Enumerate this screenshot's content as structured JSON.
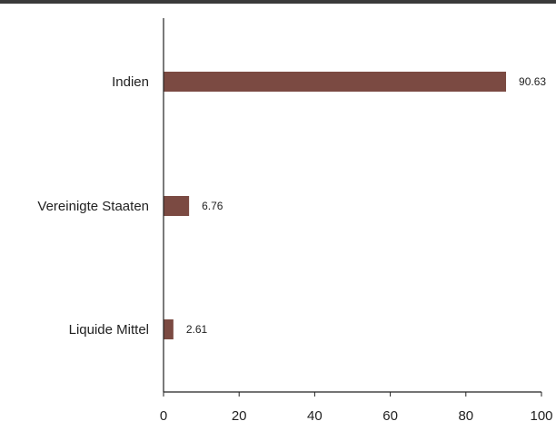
{
  "chart_data": {
    "type": "bar",
    "orientation": "horizontal",
    "categories": [
      "Indien",
      "Vereinigte Staaten",
      "Liquide Mittel"
    ],
    "values": [
      90.63,
      6.76,
      2.61
    ],
    "value_labels": [
      "90.63",
      "6.76",
      "2.61"
    ],
    "title": "",
    "xlabel": "",
    "ylabel": "",
    "xlim": [
      0,
      100
    ],
    "x_ticks": [
      0,
      20,
      40,
      60,
      80,
      100
    ],
    "x_tick_labels": [
      "0",
      "20",
      "40",
      "60",
      "80",
      "100"
    ],
    "grid": false,
    "legend": "none",
    "colors": {
      "bar": "#7b4a42",
      "axis": "#222222",
      "top_rule": "#3a3a3a"
    }
  }
}
